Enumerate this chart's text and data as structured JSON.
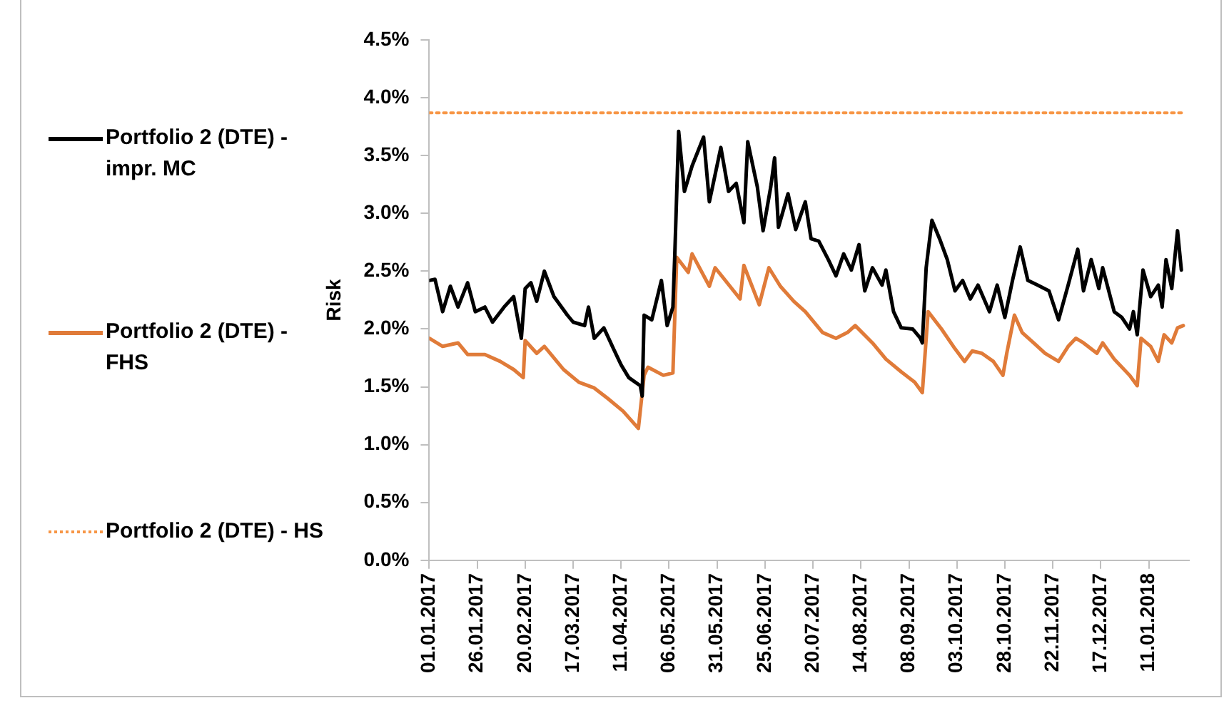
{
  "chart_data": {
    "type": "line",
    "ylabel": "Risk",
    "legend": "left",
    "grid": false,
    "marker": "none",
    "xlim": [
      "2017-01-01",
      "2018-02-01"
    ],
    "xticks": [
      {
        "value": "2017-01-01",
        "label": "01.01.2017"
      },
      {
        "value": "2017-01-26",
        "label": "26.01.2017"
      },
      {
        "value": "2017-02-20",
        "label": "20.02.2017"
      },
      {
        "value": "2017-03-17",
        "label": "17.03.2017"
      },
      {
        "value": "2017-04-11",
        "label": "11.04.2017"
      },
      {
        "value": "2017-05-06",
        "label": "06.05.2017"
      },
      {
        "value": "2017-05-31",
        "label": "31.05.2017"
      },
      {
        "value": "2017-06-25",
        "label": "25.06.2017"
      },
      {
        "value": "2017-07-20",
        "label": "20.07.2017"
      },
      {
        "value": "2017-08-14",
        "label": "14.08.2017"
      },
      {
        "value": "2017-09-08",
        "label": "08.09.2017"
      },
      {
        "value": "2017-10-03",
        "label": "03.10.2017"
      },
      {
        "value": "2017-10-28",
        "label": "28.10.2017"
      },
      {
        "value": "2017-11-22",
        "label": "22.11.2017"
      },
      {
        "value": "2017-12-17",
        "label": "17.12.2017"
      },
      {
        "value": "2018-01-11",
        "label": "11.01.2018"
      }
    ],
    "ylim": [
      0,
      4.5
    ],
    "yticks": [
      {
        "value": 0,
        "label": "0.0%"
      },
      {
        "value": 0.5,
        "label": "0.5%"
      },
      {
        "value": 1,
        "label": "1.0%"
      },
      {
        "value": 1.5,
        "label": "1.5%"
      },
      {
        "value": 2,
        "label": "2.0%"
      },
      {
        "value": 2.5,
        "label": "2.5%"
      },
      {
        "value": 3,
        "label": "3.0%"
      },
      {
        "value": 3.5,
        "label": "3.5%"
      },
      {
        "value": 4,
        "label": "4.0%"
      },
      {
        "value": 4.5,
        "label": "4.5%"
      }
    ],
    "series": [
      {
        "name": "Portfolio 2 (DTE) - impr. MC",
        "color": "#000000",
        "line_style": "solid",
        "x": [
          "2017-01-01",
          "2017-01-04",
          "2017-01-08",
          "2017-01-12",
          "2017-01-16",
          "2017-01-21",
          "2017-01-25",
          "2017-01-30",
          "2017-02-03",
          "2017-02-09",
          "2017-02-14",
          "2017-02-18",
          "2017-02-20",
          "2017-02-23",
          "2017-02-26",
          "2017-03-02",
          "2017-03-07",
          "2017-03-14",
          "2017-03-17",
          "2017-03-23",
          "2017-03-25",
          "2017-03-28",
          "2017-04-02",
          "2017-04-07",
          "2017-04-11",
          "2017-04-15",
          "2017-04-21",
          "2017-04-22",
          "2017-04-23",
          "2017-04-27",
          "2017-05-02",
          "2017-05-05",
          "2017-05-08",
          "2017-05-09",
          "2017-05-11",
          "2017-05-14",
          "2017-05-18",
          "2017-05-24",
          "2017-05-27",
          "2017-06-02",
          "2017-06-06",
          "2017-06-10",
          "2017-06-14",
          "2017-06-16",
          "2017-06-21",
          "2017-06-24",
          "2017-06-28",
          "2017-06-30",
          "2017-07-02",
          "2017-07-07",
          "2017-07-11",
          "2017-07-16",
          "2017-07-19",
          "2017-07-23",
          "2017-07-28",
          "2017-08-01",
          "2017-08-05",
          "2017-08-09",
          "2017-08-13",
          "2017-08-16",
          "2017-08-20",
          "2017-08-25",
          "2017-08-27",
          "2017-08-31",
          "2017-09-04",
          "2017-09-10",
          "2017-09-14",
          "2017-09-15",
          "2017-09-17",
          "2017-09-20",
          "2017-09-24",
          "2017-09-28",
          "2017-10-02",
          "2017-10-06",
          "2017-10-10",
          "2017-10-14",
          "2017-10-20",
          "2017-10-24",
          "2017-10-28",
          "2017-11-01",
          "2017-11-05",
          "2017-11-09",
          "2017-11-14",
          "2017-11-20",
          "2017-11-25",
          "2017-11-30",
          "2017-12-05",
          "2017-12-08",
          "2017-12-12",
          "2017-12-16",
          "2017-12-18",
          "2017-12-24",
          "2017-12-28",
          "2018-01-01",
          "2018-01-03",
          "2018-01-05",
          "2018-01-08",
          "2018-01-12",
          "2018-01-16",
          "2018-01-18",
          "2018-01-20",
          "2018-01-23",
          "2018-01-26",
          "2018-01-28"
        ],
        "values": [
          2.42,
          2.43,
          2.15,
          2.37,
          2.19,
          2.4,
          2.15,
          2.19,
          2.06,
          2.19,
          2.28,
          1.92,
          2.35,
          2.4,
          2.24,
          2.5,
          2.28,
          2.12,
          2.06,
          2.03,
          2.19,
          1.92,
          2.01,
          1.83,
          1.69,
          1.58,
          1.51,
          1.42,
          2.12,
          2.08,
          2.42,
          2.03,
          2.19,
          2.65,
          3.71,
          3.19,
          3.41,
          3.66,
          3.1,
          3.57,
          3.19,
          3.26,
          2.92,
          3.62,
          3.23,
          2.85,
          3.23,
          3.48,
          2.88,
          3.17,
          2.86,
          3.1,
          2.78,
          2.76,
          2.6,
          2.46,
          2.65,
          2.51,
          2.73,
          2.33,
          2.53,
          2.38,
          2.51,
          2.15,
          2.01,
          2.0,
          1.92,
          1.88,
          2.53,
          2.94,
          2.78,
          2.6,
          2.33,
          2.42,
          2.26,
          2.38,
          2.15,
          2.38,
          2.1,
          2.42,
          2.71,
          2.42,
          2.38,
          2.33,
          2.08,
          2.38,
          2.69,
          2.33,
          2.6,
          2.35,
          2.53,
          2.15,
          2.1,
          2.0,
          2.15,
          1.95,
          2.51,
          2.28,
          2.38,
          2.19,
          2.6,
          2.35,
          2.85,
          2.51
        ]
      },
      {
        "name": "Portfolio 2 (DTE) - FHS",
        "color": "#e07b39",
        "line_style": "solid",
        "x": [
          "2017-01-01",
          "2017-01-08",
          "2017-01-16",
          "2017-01-21",
          "2017-01-30",
          "2017-02-07",
          "2017-02-14",
          "2017-02-19",
          "2017-02-20",
          "2017-02-26",
          "2017-03-02",
          "2017-03-12",
          "2017-03-20",
          "2017-03-28",
          "2017-04-04",
          "2017-04-12",
          "2017-04-20",
          "2017-04-23",
          "2017-04-25",
          "2017-05-03",
          "2017-05-08",
          "2017-05-10",
          "2017-05-16",
          "2017-05-18",
          "2017-05-27",
          "2017-05-30",
          "2017-06-12",
          "2017-06-14",
          "2017-06-22",
          "2017-06-27",
          "2017-07-03",
          "2017-07-10",
          "2017-07-16",
          "2017-07-25",
          "2017-08-01",
          "2017-08-07",
          "2017-08-11",
          "2017-08-20",
          "2017-08-27",
          "2017-09-04",
          "2017-09-11",
          "2017-09-15",
          "2017-09-18",
          "2017-09-25",
          "2017-10-02",
          "2017-10-07",
          "2017-10-11",
          "2017-10-16",
          "2017-10-22",
          "2017-10-27",
          "2017-10-29",
          "2017-11-02",
          "2017-11-06",
          "2017-11-12",
          "2017-11-18",
          "2017-11-25",
          "2017-11-30",
          "2017-12-04",
          "2017-12-08",
          "2017-12-15",
          "2017-12-18",
          "2017-12-24",
          "2018-01-01",
          "2018-01-05",
          "2018-01-07",
          "2018-01-12",
          "2018-01-16",
          "2018-01-19",
          "2018-01-23",
          "2018-01-26",
          "2018-01-29"
        ],
        "values": [
          1.92,
          1.85,
          1.88,
          1.78,
          1.78,
          1.72,
          1.65,
          1.58,
          1.9,
          1.79,
          1.85,
          1.65,
          1.54,
          1.49,
          1.4,
          1.29,
          1.14,
          1.6,
          1.67,
          1.6,
          1.62,
          2.62,
          2.49,
          2.65,
          2.37,
          2.53,
          2.26,
          2.55,
          2.21,
          2.53,
          2.37,
          2.24,
          2.15,
          1.97,
          1.92,
          1.97,
          2.03,
          1.88,
          1.74,
          1.63,
          1.54,
          1.45,
          2.15,
          2.0,
          1.83,
          1.72,
          1.81,
          1.79,
          1.72,
          1.6,
          1.79,
          2.12,
          1.97,
          1.88,
          1.79,
          1.72,
          1.85,
          1.92,
          1.88,
          1.79,
          1.88,
          1.74,
          1.6,
          1.51,
          1.92,
          1.85,
          1.72,
          1.95,
          1.88,
          2.01,
          2.03
        ]
      },
      {
        "name": "Portfolio 2 (DTE) - HS",
        "color": "#f79646",
        "line_style": "dotted",
        "x": [
          "2017-01-01",
          "2018-01-29"
        ],
        "values": [
          3.87,
          3.87
        ]
      }
    ]
  }
}
